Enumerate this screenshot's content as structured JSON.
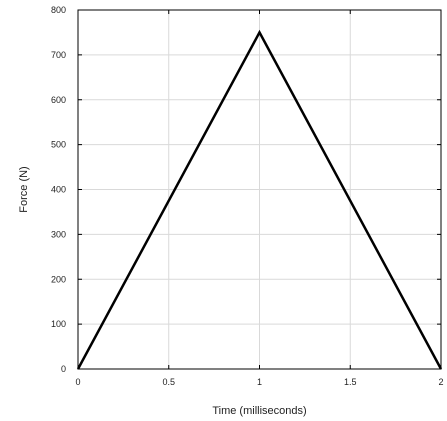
{
  "chart_data": {
    "type": "line",
    "title": "",
    "xlabel": "Time (milliseconds)",
    "ylabel": "Force (N)",
    "xlim": [
      0,
      2
    ],
    "ylim": [
      0,
      800
    ],
    "x_ticks": [
      0,
      0.5,
      1,
      1.5,
      2
    ],
    "x_tick_labels": [
      "0",
      "0.5",
      "1",
      "1.5",
      "2"
    ],
    "y_ticks": [
      0,
      100,
      200,
      300,
      400,
      500,
      600,
      700,
      800
    ],
    "y_tick_labels": [
      "0",
      "100",
      "200",
      "300",
      "400",
      "500",
      "600",
      "700",
      "800"
    ],
    "grid": true,
    "series": [
      {
        "x": [
          0,
          1,
          2
        ],
        "y": [
          0,
          750,
          0
        ],
        "color": "#000000"
      }
    ]
  }
}
